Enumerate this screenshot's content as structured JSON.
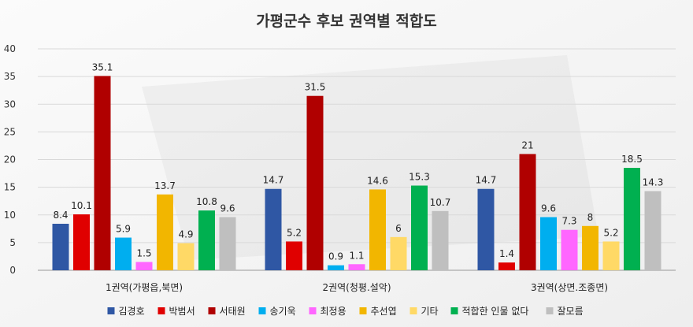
{
  "chart_data": {
    "type": "bar",
    "title": "가평군수 후보 권역별 적합도",
    "categories": [
      "1권역(가평읍,북면)",
      "2권역(청평.설악)",
      "3권역(상면.조종면)"
    ],
    "ylim": [
      0,
      40
    ],
    "yticks": [
      0,
      5,
      10,
      15,
      20,
      25,
      30,
      35,
      40
    ],
    "grid": true,
    "legend_position": "bottom",
    "series": [
      {
        "name": "김경호",
        "color": "#2f57a4",
        "values": [
          8.4,
          14.7,
          14.7
        ],
        "labels": [
          "8.4",
          "14.7",
          "14.7"
        ]
      },
      {
        "name": "박범서",
        "color": "#e00000",
        "values": [
          10.1,
          5.2,
          1.4
        ],
        "labels": [
          "10.1",
          "5.2",
          "1.4"
        ]
      },
      {
        "name": "서태원",
        "color": "#b00000",
        "values": [
          35.1,
          31.5,
          21
        ],
        "labels": [
          "35.1",
          "31.5",
          "21"
        ]
      },
      {
        "name": "송기욱",
        "color": "#00aeef",
        "values": [
          5.9,
          0.9,
          9.6
        ],
        "labels": [
          "5.9",
          "0.9",
          "9.6"
        ]
      },
      {
        "name": "최정용",
        "color": "#ff66ff",
        "values": [
          1.5,
          1.1,
          7.3
        ],
        "labels": [
          "1.5",
          "1.1",
          "7.3"
        ]
      },
      {
        "name": "추선엽",
        "color": "#f2b600",
        "values": [
          13.7,
          14.6,
          8
        ],
        "labels": [
          "13.7",
          "14.6",
          "8"
        ]
      },
      {
        "name": "기타",
        "color": "#ffd966",
        "values": [
          4.9,
          6,
          5.2
        ],
        "labels": [
          "4.9",
          "6",
          "5.2"
        ]
      },
      {
        "name": "적합한 인물 없다",
        "color": "#00b050",
        "values": [
          10.8,
          15.3,
          18.5
        ],
        "labels": [
          "10.8",
          "15.3",
          "18.5"
        ]
      },
      {
        "name": "잘모름",
        "color": "#bfbfbf",
        "values": [
          9.6,
          10.7,
          14.3
        ],
        "labels": [
          "9.6",
          "10.7",
          "14.3"
        ]
      }
    ]
  }
}
